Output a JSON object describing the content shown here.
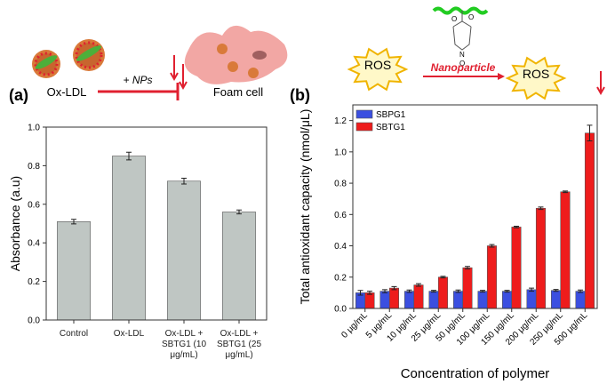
{
  "chart_data": [
    {
      "type": "bar",
      "panel_label": "(a)",
      "ylabel": "Absorbance (a.u)",
      "categories": [
        "Control",
        "Ox-LDL",
        "Ox-LDL + SBTG1 (10 μg/mL)",
        "Ox-LDL + SBTG1 (25 μg/mL)"
      ],
      "values": [
        0.51,
        0.85,
        0.72,
        0.56
      ],
      "errors": [
        0.012,
        0.02,
        0.015,
        0.01
      ],
      "color": "#bfc6c3",
      "ylim": [
        0,
        1.0
      ],
      "yticks": [
        {
          "value": 0,
          "label": "0.0"
        },
        0.2,
        0.4,
        0.6,
        0.8,
        {
          "value": 1,
          "label": "1.0"
        }
      ]
    },
    {
      "type": "bar",
      "panel_label": "(b)",
      "ylabel": "Total antioxidant capacity (nmol/μL)",
      "xlabel": "Concentration of polymer",
      "categories": [
        "0 μg/mL",
        "5 μg/mL",
        "10 μg/mL",
        "25 μg/mL",
        "50 μg/mL",
        "100 μg/mL",
        "150 μg/mL",
        "200 μg/mL",
        "250 μg/mL",
        "500 μg/mL"
      ],
      "series": [
        {
          "name": "SBPG1",
          "color": "#3b4fe0",
          "values": [
            0.1,
            0.11,
            0.11,
            0.11,
            0.11,
            0.11,
            0.11,
            0.12,
            0.115,
            0.11
          ],
          "errors": [
            0.015,
            0.01,
            0.008,
            0.006,
            0.008,
            0.006,
            0.006,
            0.01,
            0.006,
            0.008
          ]
        },
        {
          "name": "SBTG1",
          "color": "#ee1c1c",
          "values": [
            0.1,
            0.13,
            0.15,
            0.2,
            0.26,
            0.4,
            0.52,
            0.64,
            0.745,
            1.12
          ],
          "errors": [
            0.01,
            0.01,
            0.008,
            0.005,
            0.008,
            0.008,
            0.005,
            0.008,
            0.005,
            0.05
          ]
        }
      ],
      "legend": "top-left",
      "ylim": [
        0,
        1.3
      ],
      "yticks": [
        {
          "value": 0,
          "label": "0.0"
        },
        0.2,
        0.4,
        0.6,
        0.8,
        {
          "value": 1,
          "label": "1.0"
        },
        1.2
      ]
    }
  ],
  "scheme_a": {
    "ox_ldl": "Ox-LDL",
    "treatment": "+ NPs",
    "foam_cell": "Foam cell"
  },
  "scheme_b": {
    "ros_in": "ROS",
    "arrow_label": "Nanoparticle",
    "ros_out": "ROS",
    "atoms": [
      "O",
      "O",
      "N",
      "O"
    ]
  }
}
